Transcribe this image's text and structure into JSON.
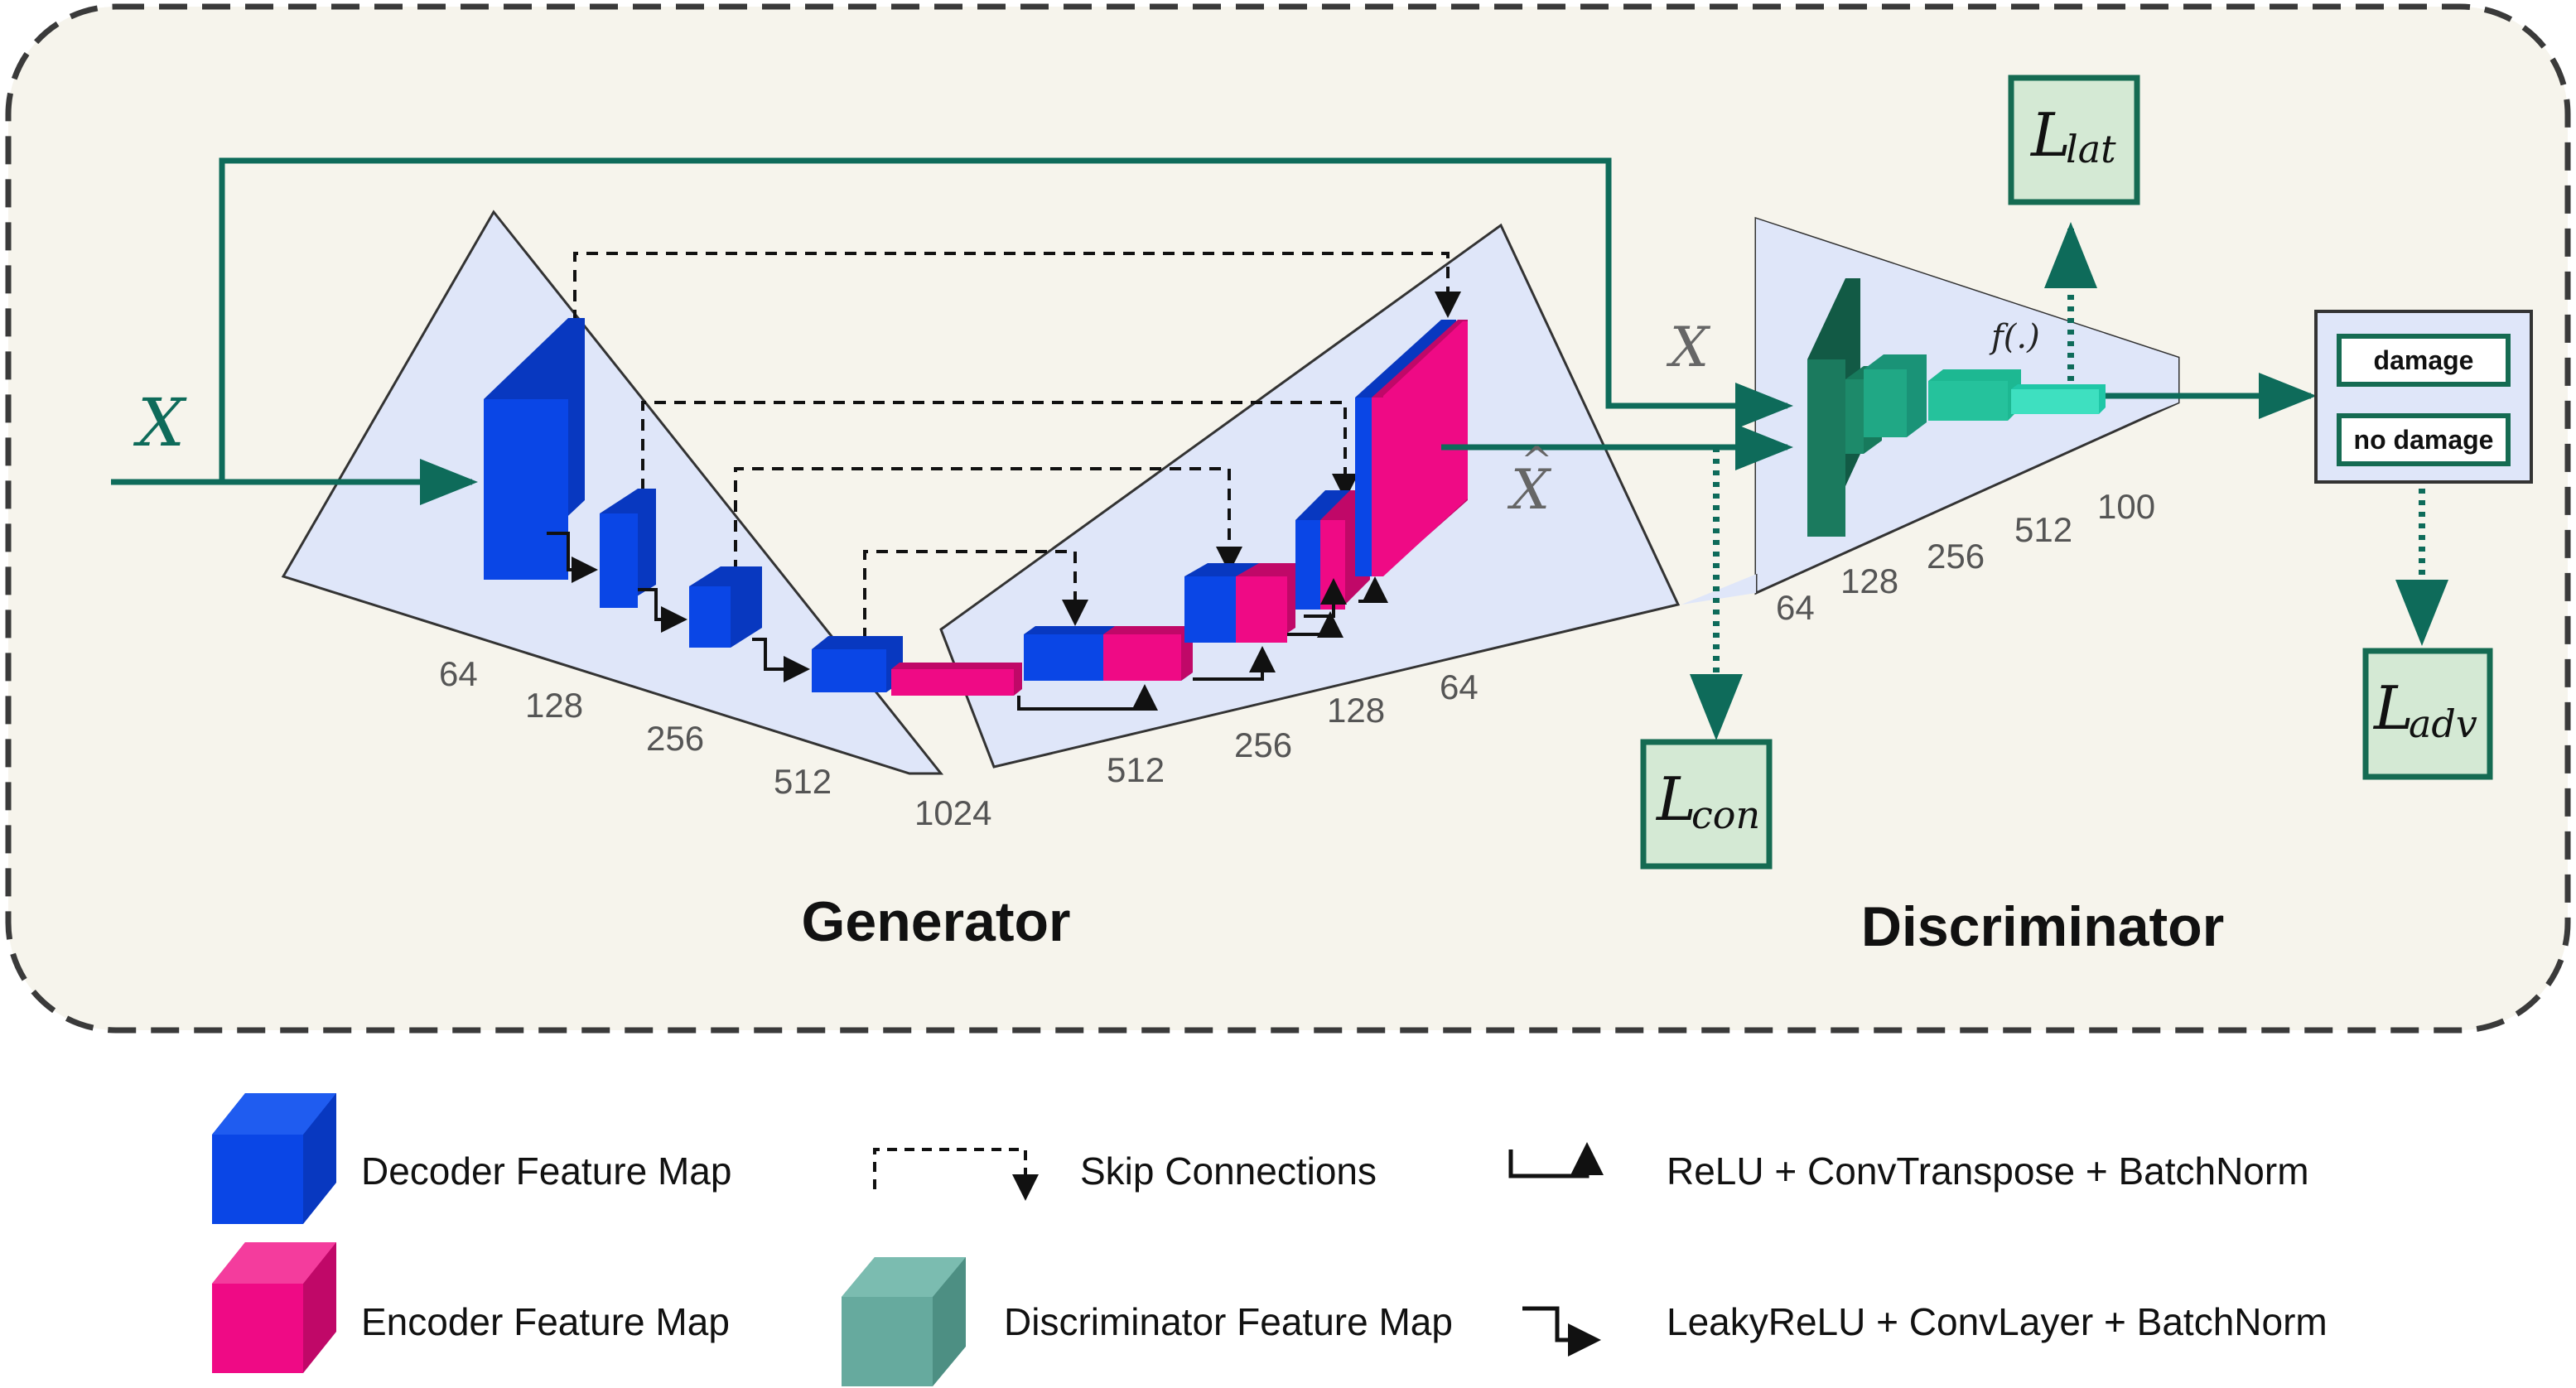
{
  "colors": {
    "panel_fill": "#f6f4ec",
    "panel_border": "#3a3a3a",
    "trap_fill": "#dfe6f9",
    "decoder": "#0a46e6",
    "encoder": "#ef0a85",
    "discriminator": "#1b7a5e",
    "disc_light": "#27c9a6",
    "teal_arrow": "#0e6b5a",
    "loss_fill": "#d4e9d4",
    "loss_border": "#156b52",
    "legend_disc": "#66aa9e"
  },
  "math": {
    "x_input": "X",
    "x_disc": "X",
    "x_hat": "X",
    "x_hat_accent": "^",
    "f_label": "f(.)"
  },
  "losses": {
    "lat": {
      "main": "L",
      "sub": "lat"
    },
    "con": {
      "main": "L",
      "sub": "con"
    },
    "adv": {
      "main": "L",
      "sub": "adv"
    }
  },
  "generator": {
    "title": "Generator",
    "encoder_dims": [
      "64",
      "128",
      "256",
      "512"
    ],
    "bottleneck_dim": "1024",
    "decoder_dims": [
      "512",
      "256",
      "128",
      "64"
    ]
  },
  "discriminator": {
    "title": "Discriminator",
    "dims": [
      "64",
      "128",
      "256",
      "512",
      "100"
    ]
  },
  "output": {
    "damage": "damage",
    "no_damage": "no damage"
  },
  "legend": {
    "decoder_map": "Decoder Feature Map",
    "encoder_map": "Encoder Feature Map",
    "skip": "Skip Connections",
    "disc_map": "Discriminator Feature Map",
    "relu": "ReLU + ConvTranspose + BatchNorm",
    "leaky": "LeakyReLU + ConvLayer + BatchNorm"
  }
}
